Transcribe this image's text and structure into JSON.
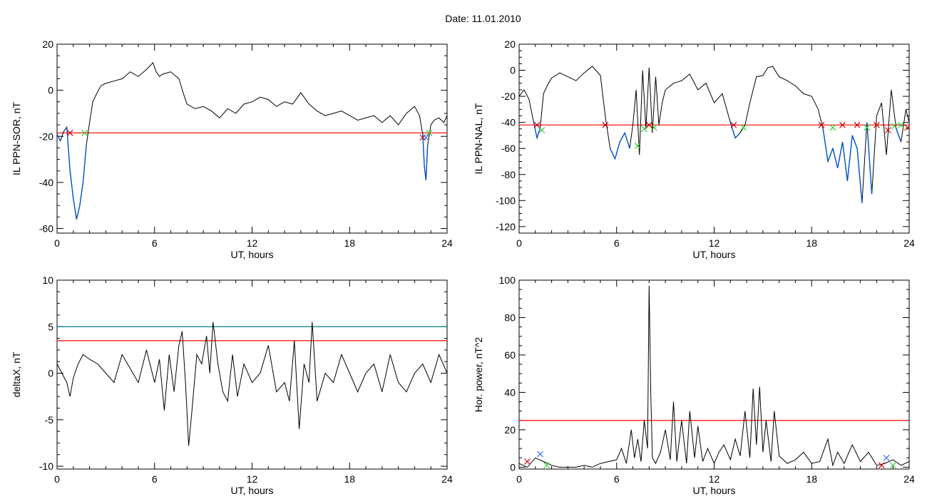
{
  "header": {
    "title": "Date:  11.01.2010"
  },
  "chart_data": [
    {
      "type": "line",
      "ylabel": "IL PPN-SOR, nT",
      "xlabel": "UT, hours",
      "xlim": [
        0,
        24
      ],
      "ylim": [
        -62,
        20
      ],
      "xticks": [
        0,
        6,
        12,
        18,
        24
      ],
      "yticks": [
        -60,
        -40,
        -20,
        0,
        20
      ],
      "threshold": -18.5,
      "threshold_color": "#ff0000",
      "line_color": "#000000",
      "below_color": "#0055cc",
      "series": [
        {
          "x": [
            0,
            0.2,
            0.4,
            0.6,
            0.8,
            1.0,
            1.2,
            1.4,
            1.6,
            1.8,
            2.0,
            2.2,
            2.4,
            2.7,
            3.0,
            3.5,
            4.0,
            4.5,
            5.0,
            5.5,
            5.9,
            6.1,
            6.3,
            6.5,
            7.0,
            7.5,
            7.8,
            8.0,
            8.5,
            9.0,
            9.5,
            10.0,
            10.5,
            11.0,
            11.5,
            12.0,
            12.5,
            13.0,
            13.5,
            14.0,
            14.5,
            15.0,
            15.5,
            16.0,
            16.5,
            17.0,
            17.5,
            18.0,
            18.5,
            19.0,
            19.5,
            20.0,
            20.5,
            21.0,
            21.5,
            22.0,
            22.3,
            22.5,
            22.6,
            22.7,
            22.8,
            23.0,
            23.2,
            23.5,
            23.8,
            24.0
          ],
          "y": [
            -19,
            -22,
            -18,
            -16,
            -35,
            -47,
            -56,
            -50,
            -40,
            -24,
            -14,
            -5,
            -2,
            2,
            3,
            4,
            5,
            8,
            6,
            9,
            12,
            8,
            6,
            7,
            8,
            5,
            -2,
            -6,
            -8,
            -7,
            -9,
            -12,
            -8,
            -10,
            -6,
            -5,
            -3,
            -4,
            -7,
            -5,
            -6,
            -1,
            -6,
            -9,
            -11,
            -10,
            -9,
            -11,
            -13,
            -12,
            -11,
            -14,
            -11,
            -15,
            -10,
            -7,
            -11,
            -19,
            -33,
            -39,
            -24,
            -15,
            -13,
            -12,
            -14,
            -11
          ]
        }
      ],
      "markers": [
        {
          "x": 0.8,
          "y": -18.5,
          "color": "#cc0000"
        },
        {
          "x": 1.7,
          "y": -18.5,
          "color": "#33cc33"
        },
        {
          "x": 22.5,
          "y": -20.5,
          "color": "#cc0000"
        },
        {
          "x": 22.7,
          "y": -20.5,
          "color": "#3366ff"
        },
        {
          "x": 22.9,
          "y": -18.5,
          "color": "#33cc33"
        }
      ]
    },
    {
      "type": "line",
      "ylabel": "IL PPN-NAL, nT",
      "xlabel": "UT, hours",
      "xlim": [
        0,
        24
      ],
      "ylim": [
        -125,
        20
      ],
      "xticks": [
        0,
        6,
        12,
        18,
        24
      ],
      "yticks": [
        -120,
        -100,
        -80,
        -60,
        -40,
        -20,
        0,
        20
      ],
      "threshold": -42,
      "threshold_color": "#ff0000",
      "line_color": "#000000",
      "below_color": "#0055cc",
      "series": [
        {
          "x": [
            0,
            0.3,
            0.6,
            0.9,
            1.1,
            1.3,
            1.5,
            1.8,
            2.0,
            2.5,
            3.0,
            3.5,
            4.0,
            4.5,
            5.0,
            5.3,
            5.6,
            5.9,
            6.2,
            6.5,
            6.8,
            7.0,
            7.2,
            7.4,
            7.6,
            7.8,
            8.0,
            8.2,
            8.4,
            8.6,
            8.8,
            9.0,
            9.5,
            10.0,
            10.5,
            11.0,
            11.5,
            12.0,
            12.5,
            13.0,
            13.3,
            13.6,
            13.9,
            14.2,
            14.6,
            15.0,
            15.3,
            15.6,
            16.0,
            16.5,
            17.0,
            17.5,
            18.0,
            18.4,
            18.7,
            19.0,
            19.3,
            19.6,
            19.9,
            20.2,
            20.5,
            20.8,
            21.1,
            21.4,
            21.7,
            22.0,
            22.3,
            22.6,
            22.9,
            23.2,
            23.5,
            23.8,
            24.0
          ],
          "y": [
            -20,
            -15,
            -22,
            -40,
            -52,
            -44,
            -18,
            -10,
            -6,
            -2,
            -5,
            -8,
            -2,
            3,
            -4,
            -35,
            -60,
            -68,
            -55,
            -48,
            -60,
            -42,
            -15,
            -65,
            0,
            -45,
            2,
            -48,
            -5,
            -42,
            -25,
            -15,
            -10,
            -8,
            -3,
            -15,
            -10,
            -25,
            -18,
            -40,
            -52,
            -48,
            -42,
            -25,
            -5,
            -4,
            2,
            3,
            -5,
            -8,
            -12,
            -18,
            -20,
            -30,
            -45,
            -70,
            -60,
            -75,
            -55,
            -85,
            -50,
            -60,
            -102,
            -40,
            -95,
            -35,
            -25,
            -65,
            -15,
            -45,
            -55,
            -30,
            -40
          ]
        }
      ],
      "markers": [
        {
          "x": 1.1,
          "y": -42,
          "color": "#cc0000"
        },
        {
          "x": 1.4,
          "y": -46,
          "color": "#33cc33"
        },
        {
          "x": 5.3,
          "y": -42,
          "color": "#cc0000"
        },
        {
          "x": 7.3,
          "y": -58,
          "color": "#33cc33"
        },
        {
          "x": 7.7,
          "y": -45,
          "color": "#33cc33"
        },
        {
          "x": 8.0,
          "y": -42,
          "color": "#cc0000"
        },
        {
          "x": 8.3,
          "y": -44,
          "color": "#33cc33"
        },
        {
          "x": 13.2,
          "y": -42,
          "color": "#cc0000"
        },
        {
          "x": 13.8,
          "y": -44,
          "color": "#33cc33"
        },
        {
          "x": 18.6,
          "y": -42,
          "color": "#cc0000"
        },
        {
          "x": 19.3,
          "y": -44,
          "color": "#33cc33"
        },
        {
          "x": 19.9,
          "y": -42,
          "color": "#cc0000"
        },
        {
          "x": 20.8,
          "y": -42,
          "color": "#cc0000"
        },
        {
          "x": 21.4,
          "y": -44,
          "color": "#33cc33"
        },
        {
          "x": 22.0,
          "y": -42,
          "color": "#cc0000"
        },
        {
          "x": 22.7,
          "y": -46,
          "color": "#cc0000"
        },
        {
          "x": 23.1,
          "y": -43,
          "color": "#33cc33"
        },
        {
          "x": 23.5,
          "y": -42,
          "color": "#33cc33"
        },
        {
          "x": 23.9,
          "y": -44,
          "color": "#cc0000"
        }
      ]
    },
    {
      "type": "line",
      "ylabel": "deltaX, nT",
      "xlabel": "UT, hours",
      "xlim": [
        0,
        24
      ],
      "ylim": [
        -10.3,
        10
      ],
      "xticks": [
        0,
        6,
        12,
        18,
        24
      ],
      "yticks": [
        -10,
        -5,
        0,
        5,
        10
      ],
      "thresholds": [
        {
          "value": 5,
          "color": "#008080"
        },
        {
          "value": 3.5,
          "color": "#ff0000"
        }
      ],
      "line_color": "#000000",
      "series": [
        {
          "x": [
            0,
            0.3,
            0.6,
            0.8,
            1.0,
            1.3,
            1.6,
            2.0,
            2.5,
            3.0,
            3.5,
            4.0,
            4.5,
            5.0,
            5.5,
            6.0,
            6.3,
            6.6,
            6.9,
            7.2,
            7.5,
            7.7,
            7.9,
            8.1,
            8.3,
            8.6,
            8.9,
            9.2,
            9.4,
            9.6,
            9.9,
            10.2,
            10.5,
            10.8,
            11.1,
            11.5,
            12.0,
            12.5,
            13.0,
            13.5,
            14.0,
            14.3,
            14.6,
            14.9,
            15.2,
            15.5,
            15.7,
            16.0,
            16.5,
            17.0,
            17.5,
            18.0,
            18.5,
            19.0,
            19.5,
            20.0,
            20.5,
            21.0,
            21.5,
            22.0,
            22.5,
            23.0,
            23.5,
            24.0
          ],
          "y": [
            1,
            0,
            -1,
            -2.5,
            -0.5,
            1,
            2,
            1.5,
            1,
            0,
            -1,
            2,
            0.5,
            -1,
            2.5,
            -1,
            1.5,
            -4,
            2,
            -2,
            3,
            4.5,
            -1,
            -7.8,
            -4,
            2,
            1,
            4,
            0,
            5.5,
            1,
            -2,
            -3,
            2,
            -2.5,
            1,
            -1,
            0,
            3,
            -2,
            -1,
            -3,
            3.5,
            -6,
            1,
            -1,
            5.5,
            -3,
            0,
            -1,
            2,
            0,
            -2,
            0,
            1,
            -2,
            2,
            -1,
            -2,
            0,
            1,
            -1,
            2,
            0
          ]
        }
      ]
    },
    {
      "type": "line",
      "ylabel": "Hor. power, nT^2",
      "xlabel": "UT, hours",
      "xlim": [
        0,
        24
      ],
      "ylim": [
        -1,
        100
      ],
      "xticks": [
        0,
        6,
        12,
        18,
        24
      ],
      "yticks": [
        0,
        20,
        40,
        60,
        80,
        100
      ],
      "threshold": 25,
      "threshold_color": "#ff0000",
      "line_color": "#000000",
      "series": [
        {
          "x": [
            0,
            0.5,
            1.0,
            1.5,
            2.0,
            2.5,
            3.0,
            3.5,
            4.0,
            4.5,
            5.0,
            5.5,
            6.0,
            6.3,
            6.6,
            6.9,
            7.1,
            7.3,
            7.5,
            7.7,
            7.9,
            8.0,
            8.1,
            8.2,
            8.4,
            8.7,
            9.0,
            9.3,
            9.5,
            9.7,
            10.0,
            10.3,
            10.5,
            10.8,
            11.0,
            11.3,
            11.6,
            12.0,
            12.3,
            12.6,
            13.0,
            13.3,
            13.6,
            13.9,
            14.2,
            14.4,
            14.6,
            14.8,
            15.0,
            15.2,
            15.5,
            15.7,
            16.0,
            16.5,
            17.0,
            17.5,
            18.0,
            18.5,
            19.0,
            19.3,
            19.6,
            20.0,
            20.5,
            21.0,
            21.5,
            22.0,
            22.5,
            23.0,
            23.5,
            24.0
          ],
          "y": [
            2,
            0,
            5,
            3,
            1,
            0,
            0,
            0,
            1,
            0,
            2,
            3,
            4,
            10,
            2,
            20,
            5,
            15,
            3,
            25,
            10,
            97,
            40,
            5,
            2,
            8,
            20,
            4,
            35,
            3,
            25,
            2,
            30,
            5,
            22,
            3,
            10,
            2,
            8,
            12,
            4,
            15,
            6,
            30,
            5,
            42,
            12,
            43,
            8,
            25,
            3,
            30,
            6,
            2,
            4,
            8,
            2,
            3,
            15,
            1,
            8,
            2,
            12,
            3,
            8,
            1,
            2,
            4,
            1,
            3
          ]
        }
      ],
      "markers": [
        {
          "x": 0.5,
          "y": 3,
          "color": "#cc0000"
        },
        {
          "x": 1.3,
          "y": 7,
          "color": "#3366ff"
        },
        {
          "x": 1.7,
          "y": 1,
          "color": "#33cc33"
        },
        {
          "x": 22.3,
          "y": 1,
          "color": "#cc0000"
        },
        {
          "x": 22.6,
          "y": 5,
          "color": "#3366ff"
        },
        {
          "x": 23.0,
          "y": 1,
          "color": "#33cc33"
        }
      ]
    }
  ]
}
